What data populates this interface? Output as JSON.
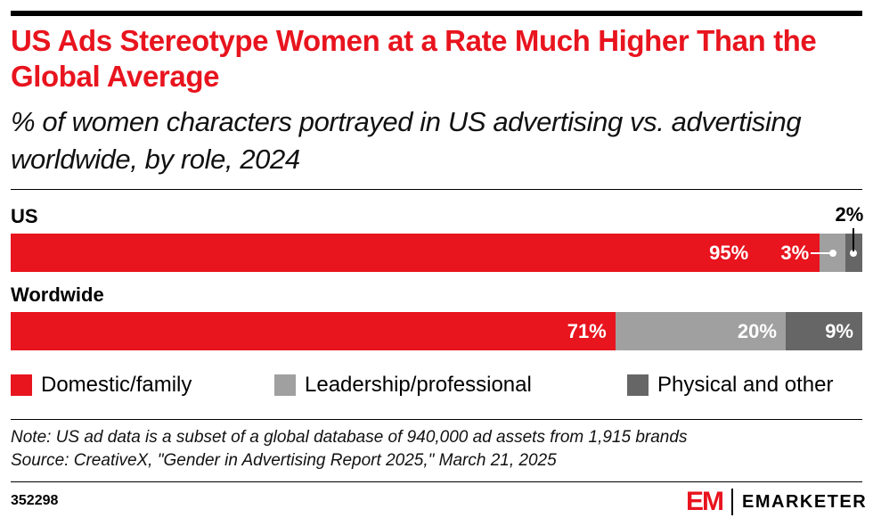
{
  "title": "US Ads Stereotype Women at a Rate Much Higher Than the Global Average",
  "subtitle": "% of women characters portrayed in US advertising vs. advertising worldwide, by role, 2024",
  "chart_data": {
    "type": "bar",
    "orientation": "horizontal",
    "stacked": true,
    "categories": [
      "US",
      "Wordwide"
    ],
    "series": [
      {
        "name": "Domestic/family",
        "values": [
          95,
          71
        ],
        "labels": [
          "95%",
          "71%"
        ],
        "color": "#e8141e"
      },
      {
        "name": "Leadership/professional",
        "values": [
          3,
          20
        ],
        "labels": [
          "3%",
          "20%"
        ],
        "color": "#a0a0a0"
      },
      {
        "name": "Physical and other",
        "values": [
          2,
          9
        ],
        "labels": [
          "2%",
          "9%"
        ],
        "color": "#666666"
      }
    ],
    "xlim": [
      0,
      100
    ],
    "legend": "bottom"
  },
  "note": "Note: US ad data is a subset of a global database of 940,000 ad assets from 1,915 brands",
  "source": "Source: CreativeX, \"Gender in Advertising Report 2025,\" March 21, 2025",
  "chart_id": "352298",
  "brand": {
    "mark": "EM",
    "name": "EMARKETER"
  }
}
